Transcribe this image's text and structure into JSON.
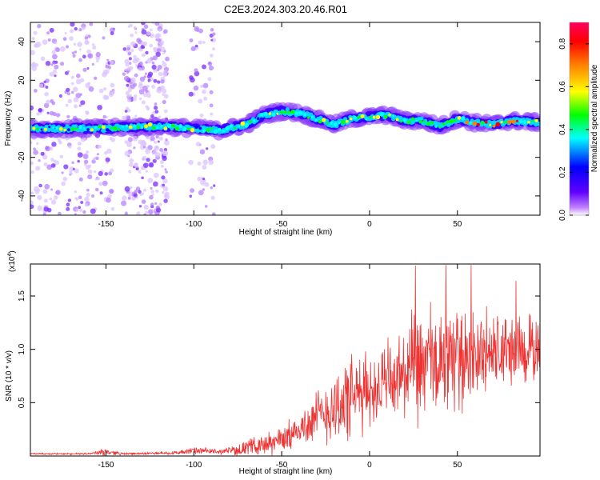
{
  "title": "C2E3.2024.303.20.46.R01",
  "chart_data": [
    {
      "type": "heatmap",
      "xlabel": "Height of straight line (km)",
      "ylabel": "Frequency (Hz)",
      "xlim": [
        -193,
        97
      ],
      "ylim": [
        -50,
        50
      ],
      "xticks": [
        -150,
        -100,
        -50,
        0,
        50
      ],
      "yticks": [
        -40,
        -20,
        0,
        20,
        40
      ],
      "xtick_labels": [
        "-150",
        "-100",
        "-50",
        "0",
        "50"
      ],
      "ytick_labels": [
        "-40",
        "-20",
        "0",
        "20",
        "40"
      ],
      "colorbar": {
        "label": "Normalized spectral amplitude",
        "range": [
          0.0,
          0.9
        ],
        "ticks": [
          0.0,
          0.2,
          0.4,
          0.6,
          0.8
        ],
        "tick_labels": [
          "0.0",
          "0.2",
          "0.4",
          "0.6",
          "0.8"
        ],
        "colors": [
          "#ffffff",
          "#c080ff",
          "#6000ff",
          "#0000ff",
          "#00ffff",
          "#00ff00",
          "#ffff00",
          "#ff8000",
          "#ff0000",
          "#ff0060"
        ]
      },
      "ridge": {
        "x": [
          -193,
          -170,
          -150,
          -130,
          -115,
          -100,
          -85,
          -70,
          -60,
          -50,
          -40,
          -30,
          -20,
          -10,
          0,
          10,
          20,
          30,
          40,
          50,
          60,
          70,
          80,
          97
        ],
        "y": [
          -5,
          -5,
          -5,
          -4,
          -4,
          -5,
          -6,
          -3,
          2,
          4,
          3,
          0,
          -3,
          0,
          1,
          2,
          -1,
          -1,
          -4,
          0,
          -2,
          -3,
          -1,
          -2
        ]
      },
      "noise_bands_x": [
        [
          -193,
          -145
        ],
        [
          -140,
          -115
        ],
        [
          -102,
          -88
        ]
      ]
    },
    {
      "type": "line",
      "xlabel": "Height of straight line (km)",
      "ylabel": "SNR (10 * v/v)",
      "multiplier_label": "(x10",
      "multiplier_exp": "4",
      "multiplier_close": ")",
      "xlim": [
        -193,
        97
      ],
      "ylim": [
        0,
        1.8
      ],
      "xticks": [
        -150,
        -100,
        -50,
        0,
        50
      ],
      "yticks": [
        0.5,
        1.0,
        1.5
      ],
      "xtick_labels": [
        "-150",
        "-100",
        "-50",
        "0",
        "50"
      ],
      "ytick_labels": [
        "0.5",
        "1.0",
        "1.5"
      ],
      "color": "#ee3333",
      "envelope": {
        "x": [
          -193,
          -160,
          -150,
          -140,
          -110,
          -100,
          -85,
          -75,
          -65,
          -55,
          -45,
          -35,
          -25,
          -15,
          -5,
          5,
          15,
          25,
          35,
          45,
          55,
          65,
          75,
          85,
          97
        ],
        "mean": [
          0.02,
          0.02,
          0.04,
          0.02,
          0.03,
          0.05,
          0.04,
          0.06,
          0.1,
          0.12,
          0.2,
          0.3,
          0.42,
          0.5,
          0.58,
          0.65,
          0.72,
          0.8,
          0.86,
          0.9,
          0.94,
          0.96,
          0.98,
          0.99,
          1.0
        ],
        "amplitude": [
          0.01,
          0.01,
          0.04,
          0.01,
          0.02,
          0.04,
          0.03,
          0.06,
          0.1,
          0.14,
          0.16,
          0.25,
          0.35,
          0.5,
          0.45,
          0.4,
          0.5,
          0.6,
          0.7,
          0.55,
          0.55,
          0.5,
          0.45,
          0.4,
          0.4
        ]
      }
    }
  ]
}
